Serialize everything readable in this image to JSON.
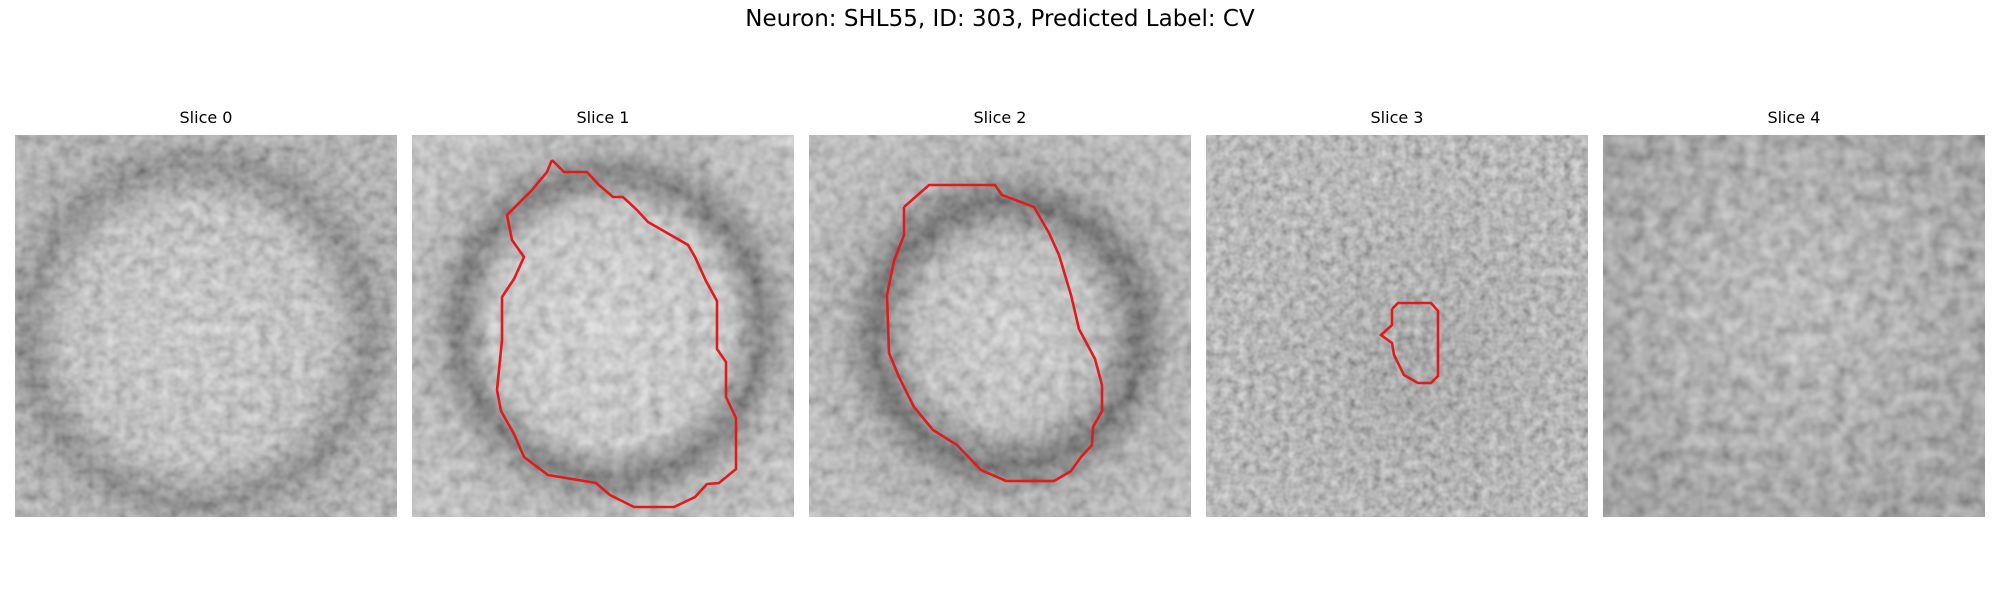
{
  "figure": {
    "title": "Neuron: SHL55, ID: 303, Predicted Label: CV"
  },
  "panels": [
    {
      "title": "Slice 0",
      "has_outline": false
    },
    {
      "title": "Slice 1",
      "has_outline": true
    },
    {
      "title": "Slice 2",
      "has_outline": true
    },
    {
      "title": "Slice 3",
      "has_outline": true
    },
    {
      "title": "Slice 4",
      "has_outline": false
    }
  ],
  "colors": {
    "outline": "#e31a1c",
    "background": "#ffffff"
  }
}
